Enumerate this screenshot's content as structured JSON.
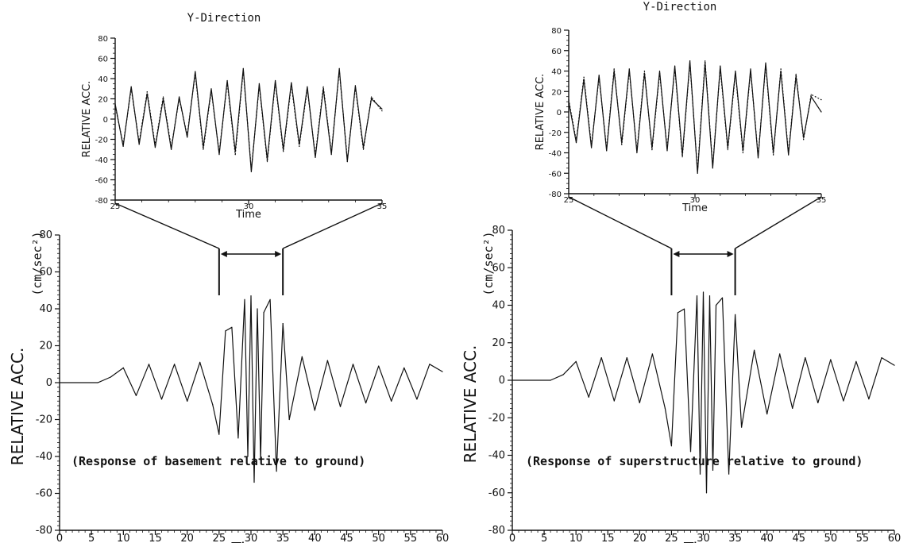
{
  "chart_data": [
    {
      "id": "left-main",
      "type": "line",
      "title": "",
      "xlabel": "Time",
      "ylabel": "RELATIVE ACC.",
      "y_unit": "(cm/sec²)",
      "annotation": "(Response of basement relative to ground)",
      "xlim": [
        0,
        60
      ],
      "ylim": [
        -80,
        80
      ],
      "x_ticks": [
        0,
        5,
        10,
        15,
        20,
        25,
        30,
        35,
        40,
        45,
        50,
        55,
        60
      ],
      "y_ticks": [
        -80,
        -60,
        -40,
        -20,
        0,
        20,
        40,
        60,
        80
      ],
      "zoom_window": [
        25,
        35
      ],
      "series": [
        {
          "x": [
            0,
            6,
            8,
            10,
            12,
            14,
            16,
            18,
            20,
            22,
            24,
            25,
            26,
            27,
            28,
            29,
            29.5,
            30,
            30.5,
            31,
            31.5,
            32,
            33,
            34,
            35,
            36,
            38,
            40,
            42,
            44,
            46,
            48,
            50,
            52,
            54,
            56,
            58,
            60
          ],
          "values": [
            0,
            0,
            3,
            8,
            -7,
            10,
            -9,
            10,
            -10,
            11,
            -12,
            -28,
            28,
            30,
            -30,
            45,
            -40,
            47,
            -54,
            40,
            -42,
            38,
            45,
            -48,
            32,
            -20,
            14,
            -15,
            12,
            -13,
            10,
            -11,
            9,
            -10,
            8,
            -9,
            10,
            6
          ]
        }
      ]
    },
    {
      "id": "left-inset",
      "type": "line",
      "title": "Y-Direction",
      "xlabel": "Time",
      "ylabel": "RELATIVE ACC.",
      "xlim": [
        25,
        35
      ],
      "ylim": [
        -80,
        80
      ],
      "x_ticks": [
        25,
        30,
        35
      ],
      "y_ticks": [
        -80,
        -60,
        -40,
        -20,
        0,
        20,
        40,
        60,
        80
      ],
      "series": [
        {
          "style": "solid",
          "x": [
            25,
            25.3,
            25.6,
            25.9,
            26.2,
            26.5,
            26.8,
            27.1,
            27.4,
            27.7,
            28.0,
            28.3,
            28.6,
            28.9,
            29.2,
            29.5,
            29.8,
            30.1,
            30.4,
            30.7,
            31.0,
            31.3,
            31.6,
            31.9,
            32.2,
            32.5,
            32.8,
            33.1,
            33.4,
            33.7,
            34.0,
            34.3,
            34.6,
            35.0
          ],
          "values": [
            15,
            -27,
            32,
            -25,
            25,
            -28,
            20,
            -30,
            22,
            -18,
            47,
            -28,
            30,
            -35,
            38,
            -32,
            50,
            -52,
            35,
            -40,
            38,
            -30,
            36,
            -25,
            32,
            -38,
            30,
            -35,
            50,
            -42,
            33,
            -28,
            20,
            10
          ]
        },
        {
          "style": "dashed",
          "x": [
            25,
            25.3,
            25.6,
            25.9,
            26.2,
            26.5,
            26.8,
            27.1,
            27.4,
            27.7,
            28.0,
            28.3,
            28.6,
            28.9,
            29.2,
            29.5,
            29.8,
            30.1,
            30.4,
            30.7,
            31.0,
            31.3,
            31.6,
            31.9,
            32.2,
            32.5,
            32.8,
            33.1,
            33.4,
            33.7,
            34.0,
            34.3,
            34.6,
            35.0
          ],
          "values": [
            13,
            -25,
            30,
            -23,
            27,
            -26,
            22,
            -28,
            20,
            -16,
            45,
            -30,
            28,
            -33,
            36,
            -35,
            48,
            -50,
            33,
            -42,
            36,
            -32,
            34,
            -27,
            30,
            -36,
            32,
            -33,
            48,
            -40,
            31,
            -30,
            22,
            8
          ]
        }
      ]
    },
    {
      "id": "right-main",
      "type": "line",
      "title": "",
      "xlabel": "Time",
      "ylabel": "RELATIVE ACC.",
      "y_unit": "(cm/sec²)",
      "annotation": "(Response of superstructure relative to ground)",
      "xlim": [
        0,
        60
      ],
      "ylim": [
        -80,
        80
      ],
      "x_ticks": [
        0,
        5,
        10,
        15,
        20,
        25,
        30,
        35,
        40,
        45,
        50,
        55,
        60
      ],
      "y_ticks": [
        -80,
        -60,
        -40,
        -20,
        0,
        20,
        40,
        60,
        80
      ],
      "zoom_window": [
        25,
        35
      ],
      "series": [
        {
          "x": [
            0,
            6,
            8,
            10,
            12,
            14,
            16,
            18,
            20,
            22,
            24,
            25,
            26,
            27,
            28,
            29,
            29.5,
            30,
            30.5,
            31,
            31.5,
            32,
            33,
            34,
            35,
            36,
            38,
            40,
            42,
            44,
            46,
            48,
            50,
            52,
            54,
            56,
            58,
            60
          ],
          "values": [
            0,
            0,
            3,
            10,
            -9,
            12,
            -11,
            12,
            -12,
            14,
            -15,
            -35,
            36,
            38,
            -38,
            45,
            -50,
            47,
            -60,
            45,
            -48,
            40,
            44,
            -50,
            35,
            -25,
            16,
            -18,
            14,
            -15,
            12,
            -12,
            11,
            -11,
            10,
            -10,
            12,
            8
          ]
        }
      ]
    },
    {
      "id": "right-inset",
      "type": "line",
      "title": "Y-Direction",
      "xlabel": "Time",
      "ylabel": "RELATIVE ACC.",
      "xlim": [
        25,
        35
      ],
      "ylim": [
        -80,
        80
      ],
      "x_ticks": [
        25,
        30,
        35
      ],
      "y_ticks": [
        -80,
        -60,
        -40,
        -20,
        0,
        20,
        40,
        60,
        80
      ],
      "series": [
        {
          "style": "solid",
          "x": [
            25,
            25.3,
            25.6,
            25.9,
            26.2,
            26.5,
            26.8,
            27.1,
            27.4,
            27.7,
            28.0,
            28.3,
            28.6,
            28.9,
            29.2,
            29.5,
            29.8,
            30.1,
            30.4,
            30.7,
            31.0,
            31.3,
            31.6,
            31.9,
            32.2,
            32.5,
            32.8,
            33.1,
            33.4,
            33.7,
            34.0,
            34.3,
            34.6,
            35.0
          ],
          "values": [
            10,
            -30,
            32,
            -35,
            36,
            -38,
            40,
            -30,
            42,
            -40,
            38,
            -35,
            40,
            -38,
            45,
            -42,
            50,
            -60,
            48,
            -55,
            45,
            -35,
            40,
            -38,
            42,
            -45,
            48,
            -40,
            40,
            -42,
            35,
            -25,
            15,
            0
          ]
        },
        {
          "style": "dashed",
          "x": [
            25,
            25.3,
            25.6,
            25.9,
            26.2,
            26.5,
            26.8,
            27.1,
            27.4,
            27.7,
            28.0,
            28.3,
            28.6,
            28.9,
            29.2,
            29.5,
            29.8,
            30.1,
            30.4,
            30.7,
            31.0,
            31.3,
            31.6,
            31.9,
            32.2,
            32.5,
            32.8,
            33.1,
            33.4,
            33.7,
            34.0,
            34.3,
            34.6,
            35.0
          ],
          "values": [
            12,
            -28,
            34,
            -33,
            34,
            -36,
            42,
            -32,
            40,
            -38,
            40,
            -37,
            38,
            -36,
            43,
            -44,
            48,
            -58,
            50,
            -53,
            43,
            -37,
            38,
            -40,
            40,
            -43,
            46,
            -42,
            42,
            -40,
            37,
            -27,
            17,
            12
          ]
        }
      ]
    }
  ]
}
